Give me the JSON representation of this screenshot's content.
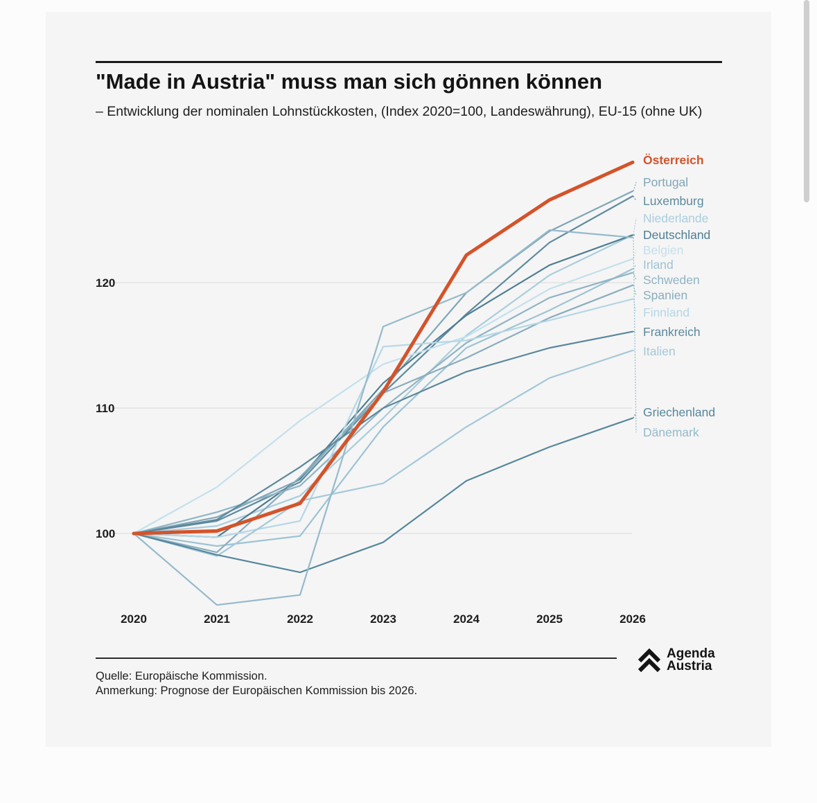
{
  "chart_data": {
    "type": "line",
    "title": "\"Made in Austria\" muss man sich gönnen können",
    "subtitle": "– Entwicklung der nominalen Lohnstückkosten, (Index 2020=100, Landeswährung), EU-15 (ohne UK)",
    "x": [
      "2020",
      "2021",
      "2022",
      "2023",
      "2024",
      "2025",
      "2026"
    ],
    "y_ticks": [
      "100",
      "110",
      "120"
    ],
    "ylim": [
      93,
      131
    ],
    "grid": true,
    "highlight_color": "#d4532a",
    "series": [
      {
        "name": "Österreich",
        "values": [
          100,
          100.2,
          102.4,
          111.3,
          122.2,
          126.6,
          129.6
        ],
        "color": "#d4532a",
        "highlight": true
      },
      {
        "name": "Portugal",
        "values": [
          100,
          101.3,
          104.3,
          111.5,
          119.2,
          124.1,
          127.3
        ],
        "color": "#7fa6b7"
      },
      {
        "name": "Luxemburg",
        "values": [
          100,
          101.0,
          104.1,
          111.2,
          117.5,
          123.2,
          126.9
        ],
        "color": "#5e8ba0"
      },
      {
        "name": "Niederlande",
        "values": [
          100,
          100.6,
          103.0,
          109.2,
          115.8,
          120.6,
          123.8
        ],
        "color": "#a9cddd"
      },
      {
        "name": "Deutschland",
        "values": [
          100,
          99.7,
          104.4,
          112.0,
          117.4,
          121.4,
          123.8
        ],
        "color": "#4e7d92"
      },
      {
        "name": "Belgien",
        "values": [
          100,
          103.7,
          109.0,
          113.5,
          115.7,
          119.5,
          121.9
        ],
        "color": "#c3e0ec"
      },
      {
        "name": "Irland",
        "values": [
          100,
          99.0,
          99.8,
          108.5,
          114.8,
          117.8,
          121.1
        ],
        "color": "#9cc3d4"
      },
      {
        "name": "Schweden",
        "values": [
          100,
          101.7,
          103.8,
          110.0,
          115.2,
          118.8,
          120.8
        ],
        "color": "#8fb4c4"
      },
      {
        "name": "Spanien",
        "values": [
          100,
          98.5,
          104.5,
          111.2,
          114.0,
          117.2,
          119.8
        ],
        "color": "#88adbe"
      },
      {
        "name": "Finnland",
        "values": [
          100,
          99.7,
          101.0,
          114.9,
          115.4,
          117.0,
          118.7
        ],
        "color": "#b4d7e6"
      },
      {
        "name": "Frankreich",
        "values": [
          100,
          101.1,
          105.3,
          110.0,
          112.9,
          114.8,
          116.1
        ],
        "color": "#5b889d"
      },
      {
        "name": "Italien",
        "values": [
          100,
          98.2,
          102.6,
          104.0,
          108.5,
          112.4,
          114.6
        ],
        "color": "#a3c8d9"
      },
      {
        "name": "Griechenland",
        "values": [
          100,
          98.3,
          96.9,
          99.3,
          104.2,
          106.9,
          109.2
        ],
        "color": "#55879c"
      },
      {
        "name": "Dänemark",
        "values": [
          100,
          94.3,
          95.1,
          116.5,
          119.2,
          124.2,
          123.6
        ],
        "color": "#94bacb"
      }
    ]
  },
  "notes": {
    "source": "Quelle: Europäische Kommission.",
    "remark": "Anmerkung: Prognose der Europäischen Kommission bis 2026."
  },
  "logo": {
    "line1": "Agenda",
    "line2": "Austria",
    "icon": "double-chevron-up-icon"
  }
}
